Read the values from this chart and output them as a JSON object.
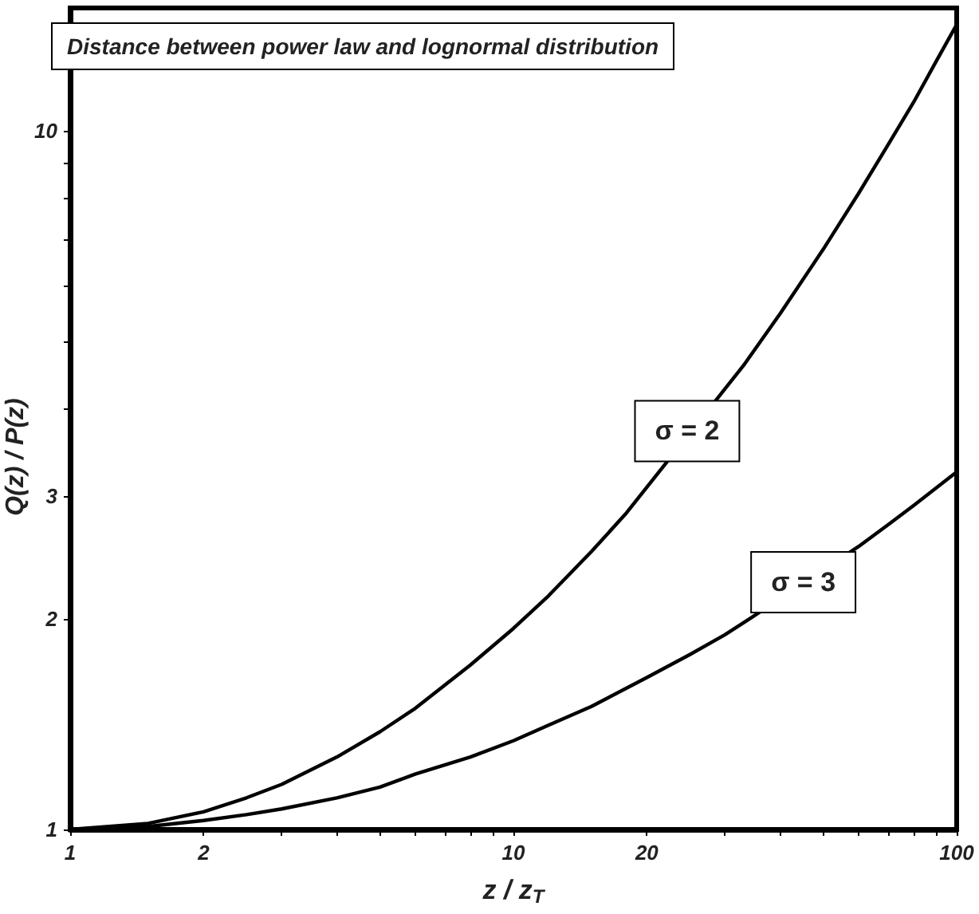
{
  "chart_data": {
    "type": "line",
    "title": "Distance between power law and lognormal distribution",
    "xlabel": "z / z$_{T}$",
    "ylabel": "Q(z) / P(z)",
    "log": "xy",
    "grid": false,
    "marker": "none",
    "line_style": "solid",
    "xlim": [
      1,
      100
    ],
    "ylim": [
      1,
      15
    ],
    "xticks": [
      1,
      2,
      {
        "value": 3,
        "label": null
      },
      {
        "value": 4,
        "label": null
      },
      {
        "value": 5,
        "label": null
      },
      {
        "value": 6,
        "label": null
      },
      {
        "value": 7,
        "label": null
      },
      {
        "value": 8,
        "label": null
      },
      {
        "value": 9,
        "label": null
      },
      10,
      20,
      {
        "value": 30,
        "label": null
      },
      {
        "value": 40,
        "label": null
      },
      {
        "value": 50,
        "label": null
      },
      {
        "value": 60,
        "label": null
      },
      {
        "value": 70,
        "label": null
      },
      {
        "value": 80,
        "label": null
      },
      {
        "value": 90,
        "label": null
      },
      100
    ],
    "yticks": [
      1,
      2,
      3,
      {
        "value": 4,
        "label": null
      },
      {
        "value": 5,
        "label": null
      },
      {
        "value": 6,
        "label": null
      },
      {
        "value": 7,
        "label": null
      },
      {
        "value": 8,
        "label": null
      },
      {
        "value": 9,
        "label": null
      },
      10
    ],
    "series": [
      {
        "color": "#000000",
        "x": [
          1,
          1.5,
          2,
          2.5,
          3,
          4,
          5,
          6,
          8,
          10,
          12,
          15,
          18,
          33,
          40,
          50,
          60,
          70,
          80,
          90,
          100
        ],
        "values": [
          1,
          1.02,
          1.06,
          1.11,
          1.16,
          1.27,
          1.38,
          1.49,
          1.72,
          1.94,
          2.16,
          2.5,
          2.84,
          4.61,
          5.48,
          6.77,
          8.13,
          9.55,
          11.0,
          12.6,
          14.2
        ]
      },
      {
        "color": "#000000",
        "x": [
          1,
          1.5,
          2,
          2.5,
          3,
          4,
          5,
          6,
          8,
          10,
          12,
          15,
          20,
          25,
          30,
          34,
          60,
          70,
          80,
          100
        ],
        "values": [
          1,
          1.01,
          1.03,
          1.05,
          1.07,
          1.11,
          1.15,
          1.2,
          1.27,
          1.34,
          1.41,
          1.5,
          1.65,
          1.78,
          1.9,
          2.0,
          2.54,
          2.73,
          2.91,
          3.25
        ]
      }
    ],
    "annotations": [
      "σ = 2",
      "σ = 3"
    ]
  }
}
